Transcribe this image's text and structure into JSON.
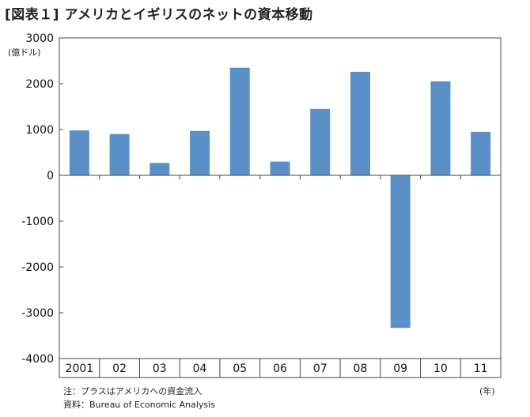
{
  "chart_data": {
    "type": "bar",
    "title": "[図表１] アメリカとイギリスのネットの資本移動",
    "ylabel": "(億ドル)",
    "xlabel": "(年)",
    "categories": [
      "2001",
      "02",
      "03",
      "04",
      "05",
      "06",
      "07",
      "08",
      "09",
      "10",
      "11"
    ],
    "values": [
      980,
      900,
      270,
      970,
      2350,
      300,
      1450,
      2260,
      -3330,
      2050,
      950
    ],
    "ylim": [
      -4000,
      3000
    ],
    "yticks": [
      3000,
      2000,
      1000,
      0,
      -1000,
      -2000,
      -3000,
      -4000
    ],
    "grid": false,
    "bar_color": "#5b8fc7"
  },
  "notes": {
    "note1": "注：プラスはアメリカへの資金流入",
    "note2": "資料：Bureau of Economic Analysis"
  }
}
